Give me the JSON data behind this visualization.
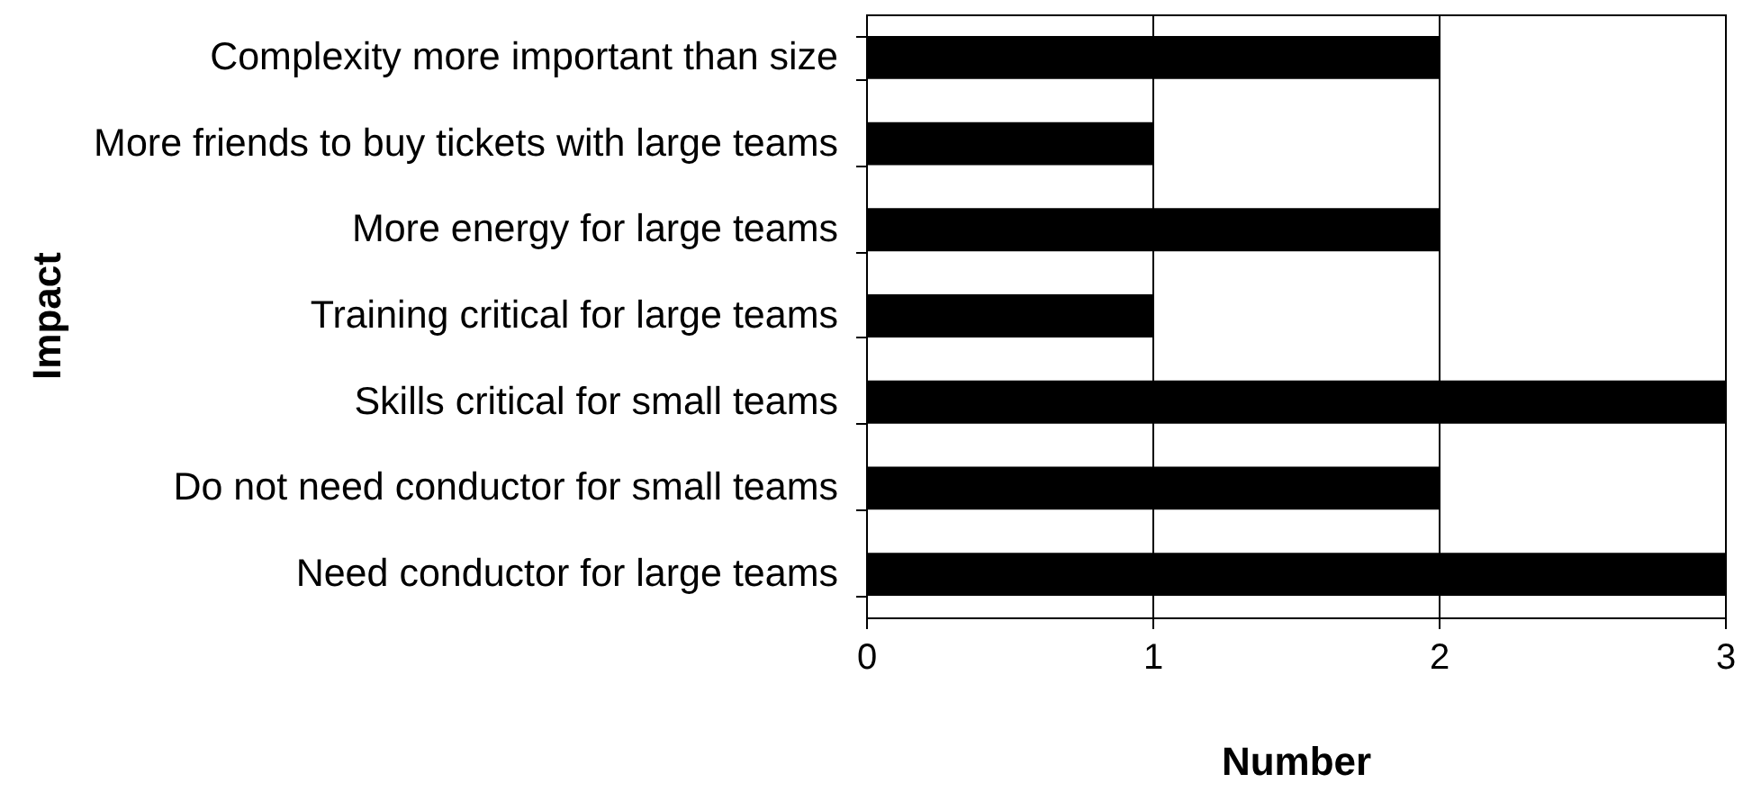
{
  "chart_data": {
    "type": "bar",
    "orientation": "horizontal",
    "xlabel": "Number",
    "ylabel": "Impact",
    "categories": [
      "Complexity more important than size",
      "More friends to buy tickets with large teams",
      "More energy for large teams",
      "Training critical for large teams",
      "Skills critical for small teams",
      "Do not need conductor for small teams",
      "Need conductor for large teams"
    ],
    "values": [
      2,
      1,
      2,
      1,
      3,
      2,
      3
    ],
    "color": "#000000",
    "xlim": [
      0,
      3
    ],
    "xticks": [
      0,
      1,
      2,
      3
    ],
    "grid": "x"
  }
}
